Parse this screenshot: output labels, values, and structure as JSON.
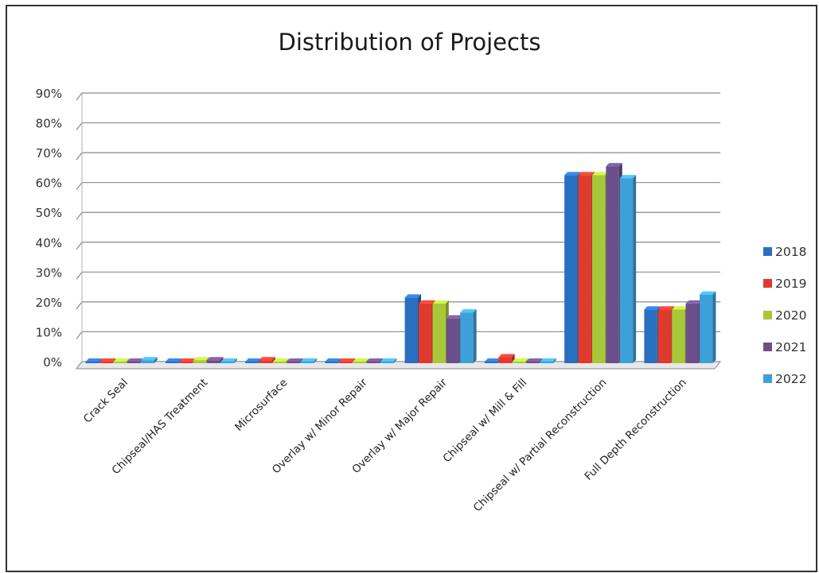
{
  "chart_data": {
    "type": "bar",
    "title": "Distribution of Projects",
    "xlabel": "",
    "ylabel": "",
    "ylim": [
      0,
      0.9
    ],
    "yticks": [
      "0%",
      "10%",
      "20%",
      "30%",
      "40%",
      "50%",
      "60%",
      "70%",
      "80%",
      "90%"
    ],
    "grid": true,
    "legend": "right",
    "categories": [
      "Crack Seal",
      "Chipseal/HAS Treatment",
      "Microsurface",
      "Overlay w/ Minor Repair",
      "Overlay w/ Major Repair",
      "Chipseal w/ Mill & Fill",
      "Chipseal w/ Partial Reconstruction",
      "Full Depth Reconstruction"
    ],
    "series": [
      {
        "name": "2018",
        "color": "#2a6fc0",
        "values": [
          0.005,
          0.005,
          0.005,
          0.005,
          0.22,
          0.005,
          0.63,
          0.18
        ]
      },
      {
        "name": "2019",
        "color": "#e03a2e",
        "values": [
          0.005,
          0.005,
          0.01,
          0.005,
          0.2,
          0.02,
          0.63,
          0.18
        ]
      },
      {
        "name": "2020",
        "color": "#a8c83a",
        "values": [
          0.005,
          0.01,
          0.005,
          0.005,
          0.2,
          0.005,
          0.63,
          0.18
        ]
      },
      {
        "name": "2021",
        "color": "#6b4f8a",
        "values": [
          0.005,
          0.01,
          0.005,
          0.005,
          0.15,
          0.005,
          0.66,
          0.2
        ]
      },
      {
        "name": "2022",
        "color": "#3ea0d8",
        "values": [
          0.01,
          0.005,
          0.005,
          0.005,
          0.17,
          0.005,
          0.62,
          0.23
        ]
      }
    ]
  }
}
